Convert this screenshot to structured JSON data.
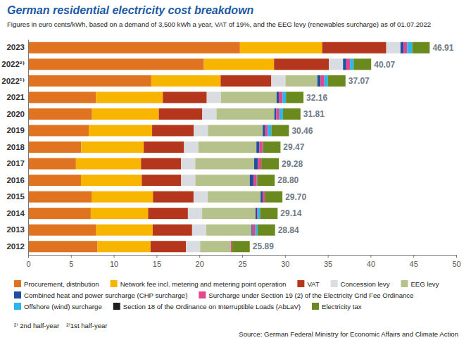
{
  "chart_data": {
    "type": "bar",
    "orientation": "horizontal",
    "stacked": true,
    "grid": false,
    "legend": "bottom",
    "title": "German residential electricity cost breakdown",
    "subtitle": "Figures in euro cents/kWh, based on a demand of 3,500 kWh a year, VAT of 19%, and the EEG levy (renewables surcharge) as of 01.07.2022",
    "footnotes": [
      "²⁾ 2nd half-year",
      "²⁾1st half-year"
    ],
    "source": "Source: German Federal Ministry for Economic Affairs and Climate Action",
    "categories": [
      "2023",
      "2022²⁾",
      "2022¹⁾",
      "2021",
      "2020",
      "2019",
      "2018",
      "2017",
      "2016",
      "2015",
      "2014",
      "2013",
      "2012"
    ],
    "xlim": [
      0,
      50
    ],
    "xticks": [
      0,
      5,
      10,
      15,
      20,
      25,
      30,
      35,
      40,
      45,
      50
    ],
    "totals": [
      46.91,
      40.07,
      37.07,
      32.16,
      31.81,
      30.46,
      29.47,
      29.28,
      28.8,
      29.7,
      29.14,
      28.84,
      25.89
    ],
    "total_labels": [
      "46.91",
      "40.07",
      "37.07",
      "32.16",
      "31.81",
      "30.46",
      "29.47",
      "29.28",
      "28.80",
      "29.70",
      "29.14",
      "28.84",
      "25.89"
    ],
    "series": [
      {
        "name": "Procurement, distribution",
        "color": "#e0731f",
        "values": [
          24.74,
          20.52,
          14.38,
          7.93,
          7.46,
          7.08,
          6.2,
          5.58,
          6.17,
          7.4,
          7.31,
          7.95,
          8.1
        ]
      },
      {
        "name": "Network fee incl. metering and metering point operation",
        "color": "#f7b500",
        "values": [
          9.6,
          8.2,
          8.1,
          7.8,
          7.8,
          7.4,
          7.3,
          7.6,
          7.1,
          7.18,
          6.7,
          6.6,
          6.2
        ]
      },
      {
        "name": "VAT",
        "color": "#b3361d",
        "values": [
          7.49,
          6.4,
          5.92,
          5.13,
          5.08,
          4.86,
          4.71,
          4.68,
          4.6,
          4.74,
          4.65,
          4.6,
          4.13
        ]
      },
      {
        "name": "Concession levy",
        "color": "#d9dde2",
        "values": [
          1.66,
          1.66,
          1.66,
          1.66,
          1.66,
          1.66,
          1.66,
          1.66,
          1.66,
          1.66,
          1.66,
          1.66,
          1.66
        ]
      },
      {
        "name": "EEG levy",
        "color": "#b6c28c",
        "values": [
          0,
          0,
          3.723,
          6.5,
          6.756,
          6.405,
          6.792,
          6.88,
          6.354,
          6.17,
          6.24,
          5.277,
          3.592
        ]
      },
      {
        "name": "Combined heat and power surcharge (CHP surcharge)",
        "color": "#1f4f9e",
        "values": [
          0.357,
          0.378,
          0.378,
          0.254,
          0.226,
          0.28,
          0.345,
          0.438,
          0.445,
          0.254,
          0.178,
          0.126,
          0.002
        ]
      },
      {
        "name": "Surcharge under Section 19 (2) of the Electricity Grid Fee Ordinance",
        "color": "#e2468d",
        "values": [
          0.417,
          0.437,
          0.437,
          0.432,
          0.358,
          0.305,
          0.37,
          0.388,
          0.378,
          0.237,
          0.092,
          0.329,
          0.151
        ]
      },
      {
        "name": "Offshore (wind) surcharge",
        "color": "#2bb7ea",
        "values": [
          0.591,
          0.419,
          0.419,
          0.395,
          0.416,
          0.416,
          0.037,
          0,
          0.04,
          0,
          0.25,
          0.25,
          0
        ]
      },
      {
        "name": "Section 18 of the Ordinance on Interruptible Loads (AbLaV)",
        "color": "#1e1e1e",
        "values": [
          0,
          0.003,
          0.003,
          0.009,
          0.007,
          0.005,
          0.011,
          0.006,
          0,
          0.006,
          0.009,
          0,
          0
        ]
      },
      {
        "name": "Electricity tax",
        "color": "#6a8a1f",
        "values": [
          2.05,
          2.05,
          2.05,
          2.05,
          2.05,
          2.05,
          2.05,
          2.05,
          2.05,
          2.05,
          2.05,
          2.05,
          2.05
        ]
      }
    ]
  }
}
